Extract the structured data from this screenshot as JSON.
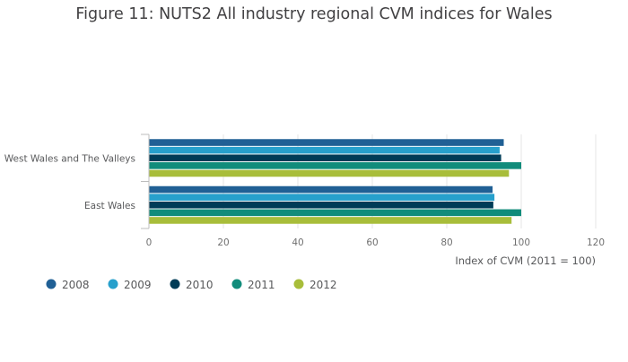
{
  "chart_data": {
    "type": "bar",
    "orientation": "horizontal",
    "title": "Figure 11: NUTS2 All industry regional CVM indices for Wales",
    "xlabel": "Index of CVM (2011 = 100)",
    "ylabel": "",
    "xlim": [
      0,
      120
    ],
    "xticks": [
      0,
      20,
      40,
      60,
      80,
      100,
      120
    ],
    "grid": "vertical",
    "legend_position": "bottom-left",
    "categories": [
      "West Wales and The Valleys",
      "East Wales"
    ],
    "series": [
      {
        "name": "2008",
        "color": "#206095",
        "values": [
          95.3,
          92.3
        ]
      },
      {
        "name": "2009",
        "color": "#27a0cc",
        "values": [
          94.2,
          92.8
        ]
      },
      {
        "name": "2010",
        "color": "#003c57",
        "values": [
          94.6,
          92.5
        ]
      },
      {
        "name": "2011",
        "color": "#118c7b",
        "values": [
          100,
          100
        ]
      },
      {
        "name": "2012",
        "color": "#a8bd3a",
        "values": [
          96.7,
          97.4
        ]
      }
    ]
  }
}
